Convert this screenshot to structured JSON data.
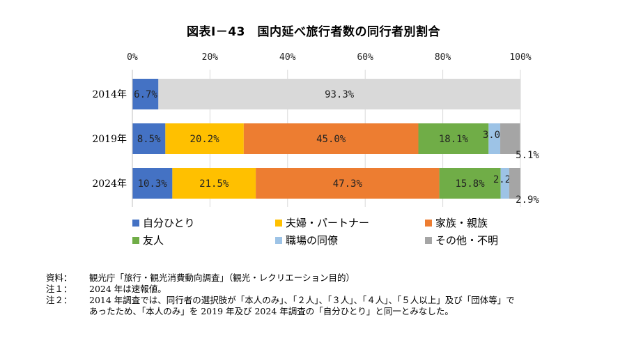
{
  "chart_data": {
    "type": "bar",
    "orientation": "horizontal-stacked-100",
    "title": "図表Ⅰ－43　国内延べ旅行者数の同行者別割合",
    "x_ticks": [
      "0%",
      "20%",
      "40%",
      "60%",
      "80%",
      "100%"
    ],
    "xlim": [
      0,
      100
    ],
    "grid": true,
    "legend_position": "bottom",
    "categories": [
      "2014年",
      "2019年",
      "2024年"
    ],
    "series": [
      {
        "name": "自分ひとり",
        "color": "#4472C4",
        "values": [
          6.7,
          8.5,
          10.3
        ],
        "labels": [
          "6.7%",
          "8.5%",
          "10.3%"
        ]
      },
      {
        "name": "夫婦・パートナー",
        "color": "#FFC000",
        "values": [
          null,
          20.2,
          21.5
        ],
        "labels": [
          "",
          "20.2%",
          "21.5%"
        ]
      },
      {
        "name": "家族・親族",
        "color": "#ED7D31",
        "values": [
          null,
          45.0,
          47.3
        ],
        "labels": [
          "",
          "45.0%",
          "47.3%"
        ]
      },
      {
        "name": "友人",
        "color": "#70AD47",
        "values": [
          null,
          18.1,
          15.8
        ],
        "labels": [
          "",
          "18.1%",
          "15.8%"
        ]
      },
      {
        "name": "職場の同僚",
        "color": "#9DC3E6",
        "values": [
          null,
          3.0,
          2.2
        ],
        "labels": [
          "",
          "3.0%",
          "2.2%"
        ]
      },
      {
        "name": "その他・不明",
        "color": "#A5A5A5",
        "values": [
          null,
          5.1,
          2.9
        ],
        "labels": [
          "",
          "5.1%",
          "2.9%"
        ]
      }
    ],
    "remainder_2014": {
      "value": 93.3,
      "label": "93.3%",
      "color": "#D9D9D9"
    }
  },
  "notes": [
    {
      "label": "資料：",
      "text": "観光庁「旅行・観光消費動向調査」（観光・レクリエーション目的）"
    },
    {
      "label": "注１：",
      "text": "2024 年は速報値。"
    },
    {
      "label": "注２：",
      "text": "2014 年調査では、同行者の選択肢が「本人のみ」、「２人」、「３人」、「４人」、「５人以上」及び「団体等」で",
      "continuation": "あったため、「本人のみ」を 2019 年及び 2024 年調査の「自分ひとり」と同一とみなした。"
    }
  ]
}
